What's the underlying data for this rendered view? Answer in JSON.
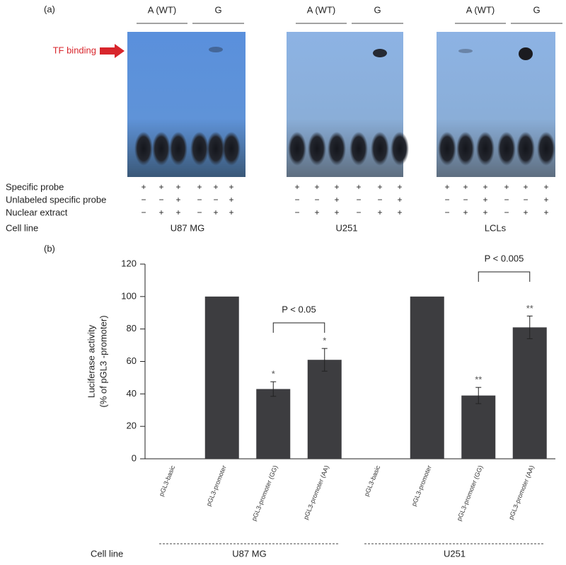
{
  "panel_a": {
    "label": "(a)",
    "arrow_label": "TF binding",
    "row_labels": [
      "Specific probe",
      "Unlabeled specific probe",
      "Nuclear extract",
      "Cell line"
    ],
    "gels": [
      {
        "cell_line": "U87 MG",
        "headers": [
          "A (WT)",
          "G"
        ],
        "signs": [
          [
            "+",
            "+",
            "+",
            "+",
            "+",
            "+"
          ],
          [
            "−",
            "−",
            "+",
            "−",
            "−",
            "+"
          ],
          [
            "−",
            "+",
            "+",
            "−",
            "+",
            "+"
          ]
        ]
      },
      {
        "cell_line": "U251",
        "headers": [
          "A (WT)",
          "G"
        ],
        "signs": [
          [
            "+",
            "+",
            "+",
            "+",
            "+",
            "+"
          ],
          [
            "−",
            "−",
            "+",
            "−",
            "−",
            "+"
          ],
          [
            "−",
            "+",
            "+",
            "−",
            "+",
            "+"
          ]
        ]
      },
      {
        "cell_line": "LCLs",
        "headers": [
          "A (WT)",
          "G"
        ],
        "signs": [
          [
            "+",
            "+",
            "+",
            "+",
            "+",
            "+"
          ],
          [
            "−",
            "−",
            "+",
            "−",
            "−",
            "+"
          ],
          [
            "−",
            "+",
            "+",
            "−",
            "+",
            "+"
          ]
        ]
      }
    ]
  },
  "chart_data": {
    "type": "bar",
    "panel_label": "(b)",
    "y_label": [
      "Luciferase activity",
      "(% of pGL3 -promoter)"
    ],
    "categories": [
      "pGL3-basic",
      "pGL3-promoter",
      "pGL3-promoter (GG)",
      "pGL3-promoter (AA)",
      "pGL3-basic",
      "pGL3-promoter",
      "pGL3-promoter (GG)",
      "pGL3-promoter (AA)"
    ],
    "values": [
      0,
      100,
      43,
      61,
      0,
      100,
      39,
      81
    ],
    "errors": [
      null,
      null,
      4.5,
      7,
      null,
      null,
      5,
      7
    ],
    "significance_marks": [
      null,
      null,
      "*",
      "*",
      null,
      null,
      "**",
      "**"
    ],
    "comparisons": [
      "P < 0.05",
      "P < 0.005"
    ],
    "color": "#3d3d40",
    "ylim": [
      0,
      120
    ],
    "yticks": [
      0,
      20,
      40,
      60,
      80,
      100,
      120
    ],
    "group_axis_label": "Cell line",
    "groups": [
      "U87 MG",
      "U251"
    ]
  }
}
